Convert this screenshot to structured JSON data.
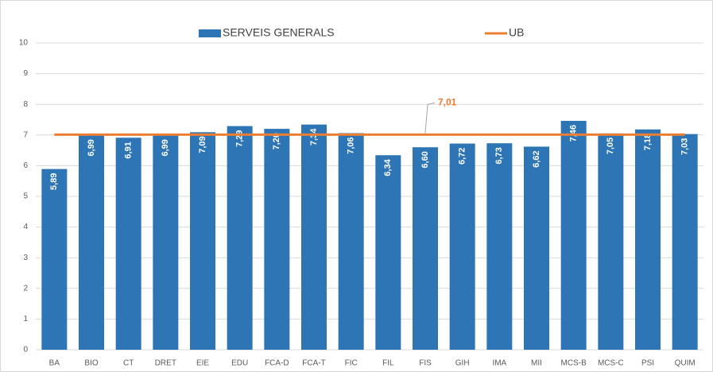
{
  "chart_data": {
    "type": "bar",
    "categories": [
      "BA",
      "BIO",
      "CT",
      "DRET",
      "EIE",
      "EDU",
      "FCA-D",
      "FCA-T",
      "FIC",
      "FIL",
      "FIS",
      "GIH",
      "IMA",
      "MII",
      "MCS-B",
      "MCS-C",
      "PSI",
      "QUIM"
    ],
    "series": [
      {
        "name": "SERVEIS GENERALS",
        "type": "bar",
        "color": "#2e75b6",
        "values": [
          5.89,
          6.99,
          6.91,
          6.99,
          7.09,
          7.29,
          7.2,
          7.34,
          7.06,
          6.34,
          6.6,
          6.72,
          6.73,
          6.62,
          7.46,
          7.05,
          7.18,
          7.03
        ],
        "value_labels": [
          "5,89",
          "6,99",
          "6,91",
          "6,99",
          "7,09",
          "7,29",
          "7,20",
          "7,34",
          "7,06",
          "6,34",
          "6,60",
          "6,72",
          "6,73",
          "6,62",
          "7,46",
          "7,05",
          "7,18",
          "7,03"
        ]
      },
      {
        "name": "UB",
        "type": "line",
        "color": "#ed7d31",
        "values": [
          7.01,
          7.01,
          7.01,
          7.01,
          7.01,
          7.01,
          7.01,
          7.01,
          7.01,
          7.01,
          7.01,
          7.01,
          7.01,
          7.01,
          7.01,
          7.01,
          7.01,
          7.01
        ],
        "value_labels": [
          null,
          null,
          null,
          null,
          null,
          null,
          null,
          null,
          null,
          null,
          "7,01",
          null,
          null,
          null,
          null,
          null,
          null,
          null
        ]
      }
    ],
    "ylim": [
      0,
      10
    ],
    "yticks": [
      0,
      1,
      2,
      3,
      4,
      5,
      6,
      7,
      8,
      9,
      10
    ],
    "grid": true,
    "legend": "top"
  }
}
